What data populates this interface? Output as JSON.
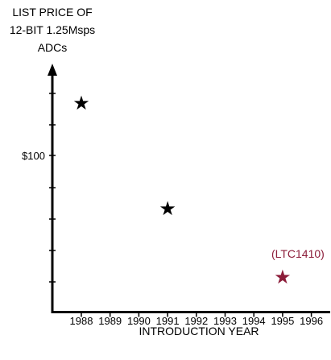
{
  "chart_data": {
    "type": "scatter",
    "title": "",
    "ylabel_lines": [
      "LIST PRICE OF",
      "12-BIT 1.25Msps",
      "ADCs"
    ],
    "xlabel": "INTRODUCTION YEAR",
    "x_ticks": [
      1988,
      1989,
      1990,
      1991,
      1992,
      1993,
      1994,
      1995,
      1996
    ],
    "y_ticks": [
      {
        "value": 100,
        "label": "$100"
      }
    ],
    "y_scale": "log",
    "grid": false,
    "legend": "none",
    "points": [
      {
        "x": 1988,
        "y": 220,
        "label": "",
        "color": "#000000"
      },
      {
        "x": 1991,
        "y": 45,
        "label": "",
        "color": "#000000"
      },
      {
        "x": 1995,
        "y": 16,
        "label": "(LTC1410)",
        "color": "#8c1d3a"
      }
    ]
  }
}
